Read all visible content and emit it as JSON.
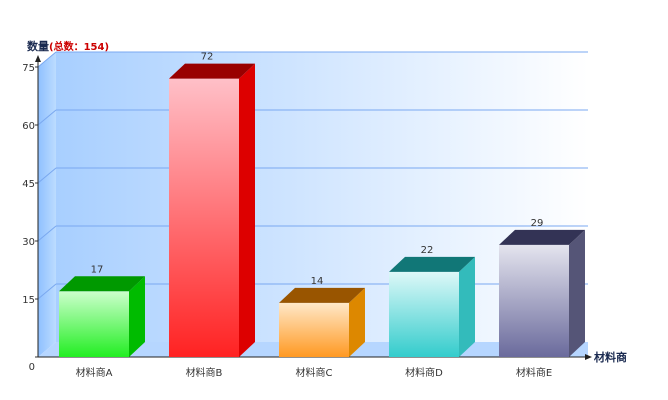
{
  "chart_data": {
    "type": "bar",
    "ylabel": "数量",
    "ylabel_note": "(总数：154)",
    "xlabel": "材料商",
    "ylim": [
      0,
      75
    ],
    "yticks": [
      0,
      15,
      30,
      45,
      60,
      75
    ],
    "grid": true,
    "categories": [
      "材料商A",
      "材料商B",
      "材料商C",
      "材料商D",
      "材料商E"
    ],
    "values": [
      17,
      72,
      14,
      22,
      29
    ],
    "colors": [
      {
        "top": "#009900",
        "side": "#00bb00",
        "light": "#ccffcc",
        "dark": "#22ee22"
      },
      {
        "top": "#990000",
        "side": "#dd0000",
        "light": "#ffc0c8",
        "dark": "#ff2222"
      },
      {
        "top": "#995500",
        "side": "#dd8800",
        "light": "#ffe8c8",
        "dark": "#ff9922"
      },
      {
        "top": "#117777",
        "side": "#33bbbb",
        "light": "#ddf8f8",
        "dark": "#33cccc"
      },
      {
        "top": "#333355",
        "side": "#555577",
        "light": "#e4e4ee",
        "dark": "#6a6a9c"
      }
    ]
  }
}
